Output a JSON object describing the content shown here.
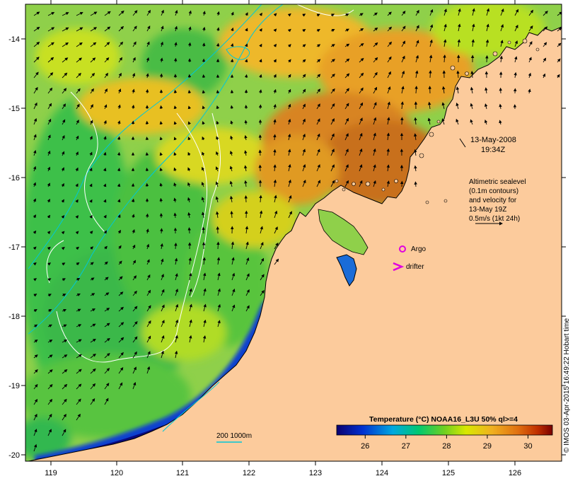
{
  "map": {
    "date_label": "13-May-2008",
    "time_label": "19:34Z",
    "altimetry_note": [
      "Altimetric sealevel",
      "(0.1m contours)",
      "and velocity for",
      "13-May 19Z",
      "0.5m/s (1kt 24h)"
    ],
    "argo_label": "Argo",
    "drifter_label": "drifter",
    "depth_contours_label": "200  1000m",
    "credit": "© IMOS 03-Apr-2015 16:49:22 Hobart time",
    "colors": {
      "land": "#fccb9c",
      "argo": "#e000e0",
      "drifter": "#e000e0",
      "bathymetry": "#00c8d8",
      "sealevel_contour": "#ffffff"
    }
  },
  "axes": {
    "x_ticks": [
      "119",
      "120",
      "121",
      "122",
      "123",
      "124",
      "125",
      "126"
    ],
    "y_ticks": [
      "-14",
      "-15",
      "-16",
      "-17",
      "-18",
      "-19",
      "-20"
    ]
  },
  "colorbar": {
    "title": "Temperature (°C) NOAA16_L3U 50% ql>=4",
    "ticks": [
      "26",
      "27",
      "28",
      "29",
      "30"
    ],
    "range": [
      25.3,
      30.6
    ]
  }
}
